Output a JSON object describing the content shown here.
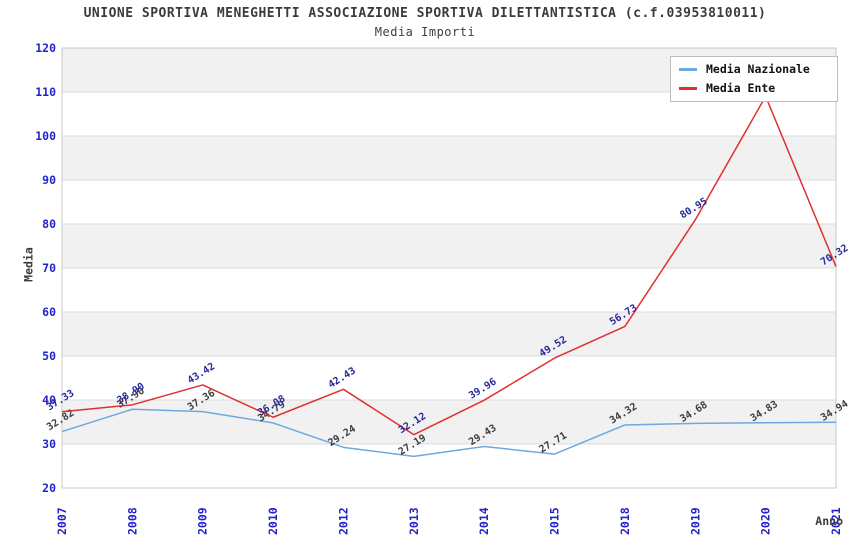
{
  "chart_data": {
    "type": "line",
    "title": "UNIONE SPORTIVA MENEGHETTI ASSOCIAZIONE SPORTIVA DILETTANTISTICA (c.f.03953810011)",
    "subtitle": "Media Importi",
    "xlabel": "Anno",
    "ylabel": "Media",
    "ylim": [
      20,
      120
    ],
    "ytick_step": 10,
    "yticks": [
      20,
      30,
      40,
      50,
      60,
      70,
      80,
      90,
      100,
      110,
      120
    ],
    "categories": [
      "2007",
      "2008",
      "2009",
      "2010",
      "2012",
      "2013",
      "2014",
      "2015",
      "2018",
      "2019",
      "2020",
      "2021"
    ],
    "series": [
      {
        "name": "Media Nazionale",
        "color": "#6FA8DC",
        "label_color": "#3d3d3d",
        "values": [
          32.82,
          37.9,
          37.36,
          34.79,
          29.24,
          27.19,
          29.43,
          27.71,
          34.32,
          34.68,
          34.83,
          34.94
        ],
        "point_labels": [
          "32.82",
          "37.90",
          "37.36",
          "34.79",
          "29.24",
          "27.19",
          "29.43",
          "27.71",
          "34.32",
          "34.68",
          "34.83",
          "34.94"
        ]
      },
      {
        "name": "Media Ente",
        "color": "#E03030",
        "label_color": "#28289B",
        "values": [
          37.33,
          38.9,
          43.42,
          36.08,
          42.43,
          32.12,
          39.96,
          49.52,
          56.73,
          80.95,
          109,
          70.32
        ],
        "point_labels": [
          "37.33",
          "38.90",
          "43.42",
          "36.08",
          "42.43",
          "32.12",
          "39.96",
          "49.52",
          "56.73",
          "80.95",
          "",
          "70.32"
        ]
      }
    ],
    "legend": {
      "position": "top-right"
    },
    "grid": "horizontal-bands",
    "band_colors": [
      "#f1f1f1",
      "#ffffff"
    ],
    "gridline_color": "#dcdcdc",
    "border_color": "#c9c9c9",
    "tick_label_color": "#2323CC"
  }
}
